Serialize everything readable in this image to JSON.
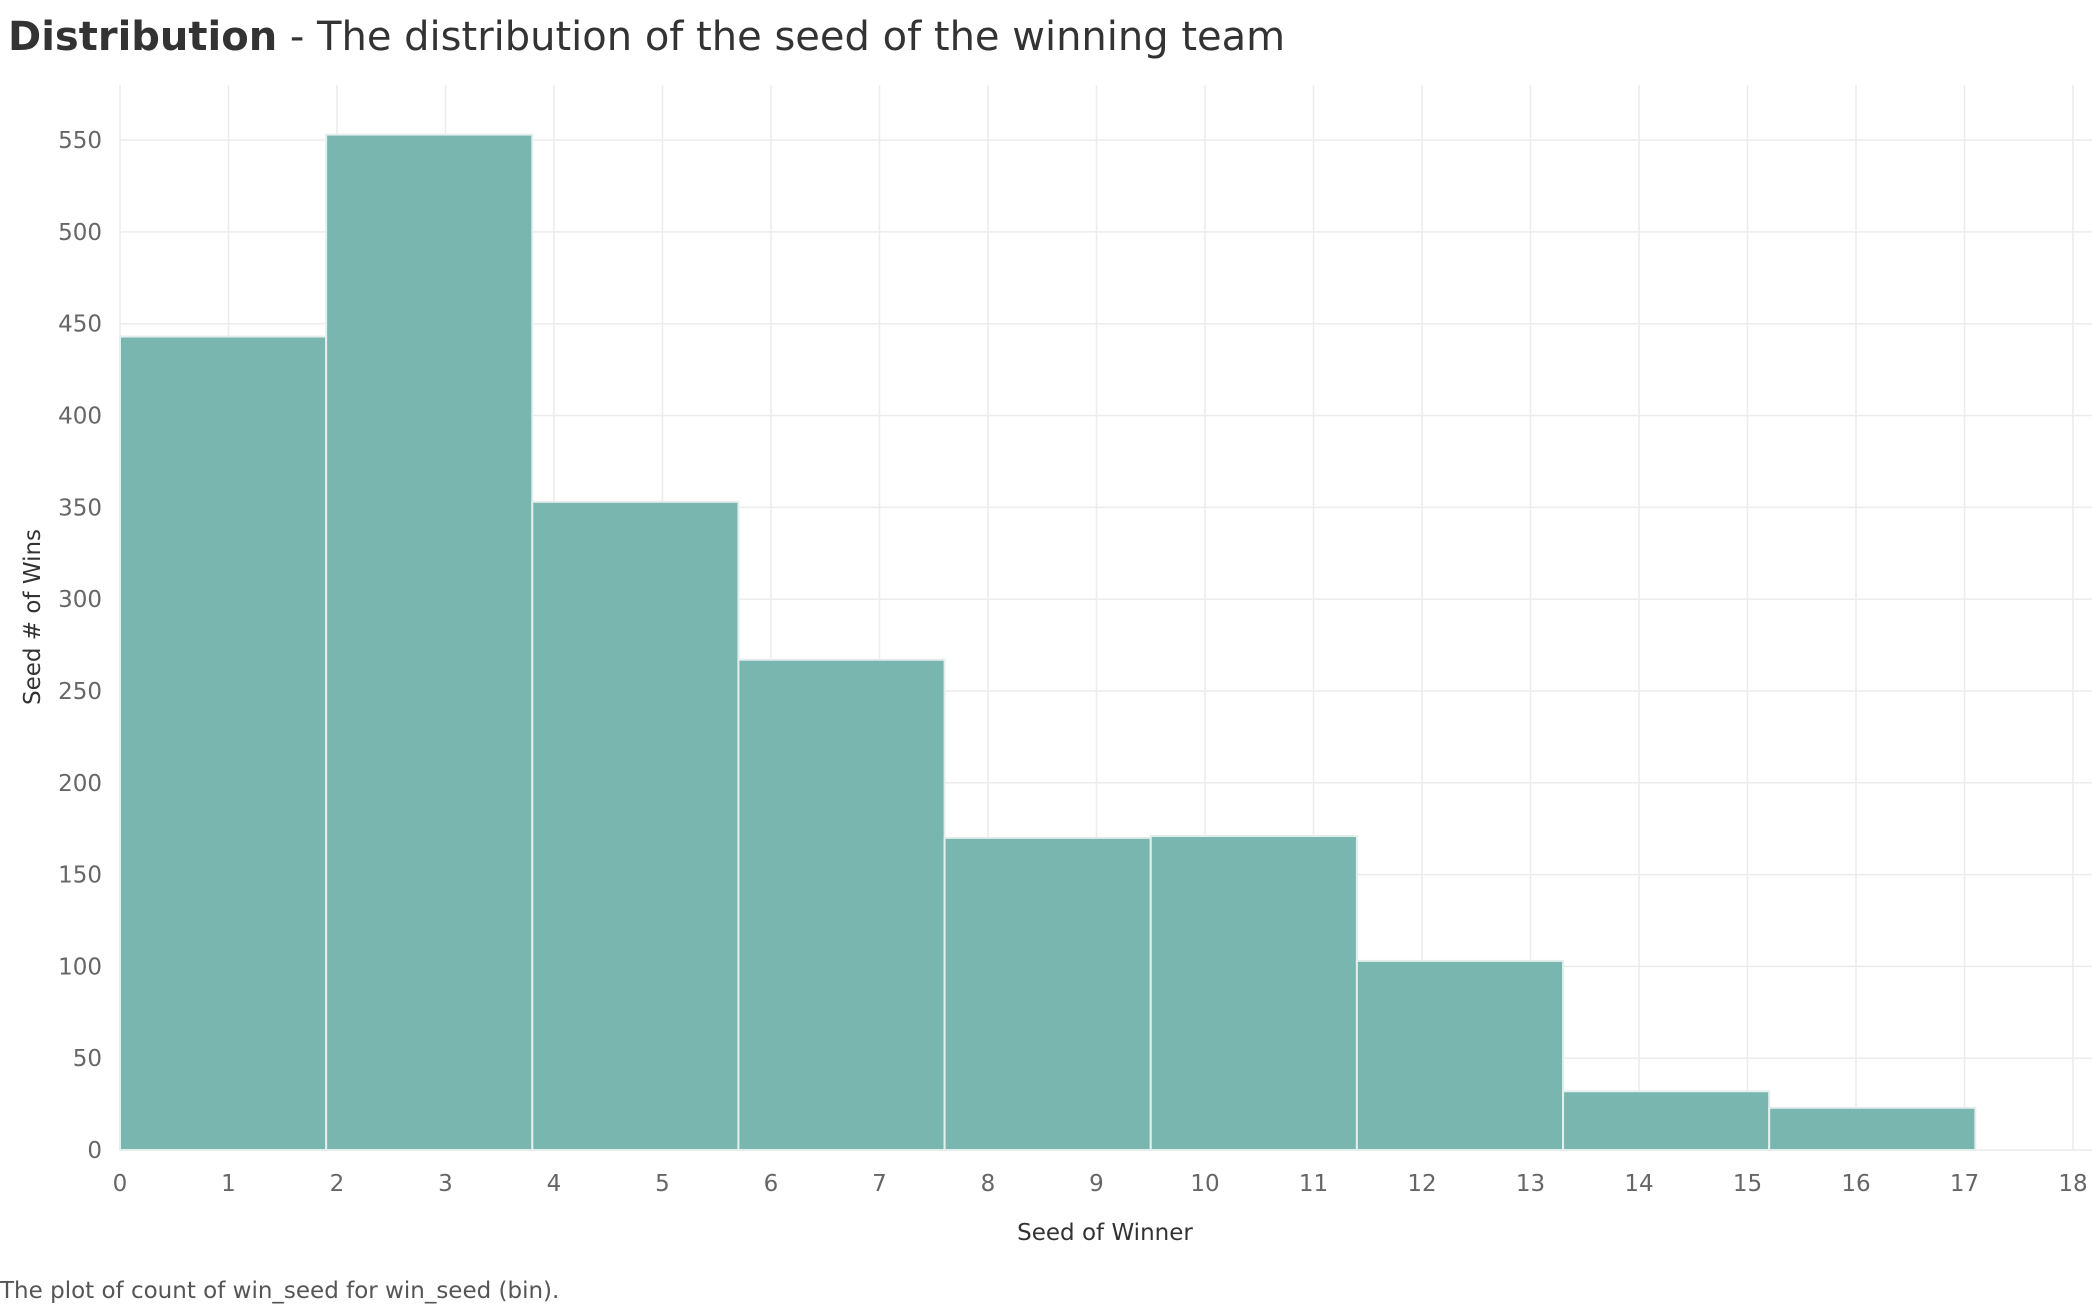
{
  "title": {
    "bold": "Distribution",
    "rest": " - The distribution of the seed of the winning team"
  },
  "caption": "The plot of count of win_seed for win_seed (bin).",
  "chart_data": {
    "type": "bar",
    "title": "Distribution - The distribution of the seed of the winning team",
    "xlabel": "Seed of Winner",
    "ylabel": "Seed # of Wins",
    "bins": [
      {
        "start": 0.0,
        "end": 1.9,
        "value": 443
      },
      {
        "start": 1.9,
        "end": 3.8,
        "value": 553
      },
      {
        "start": 3.8,
        "end": 5.7,
        "value": 353
      },
      {
        "start": 5.7,
        "end": 7.6,
        "value": 267
      },
      {
        "start": 7.6,
        "end": 9.5,
        "value": 170
      },
      {
        "start": 9.5,
        "end": 11.4,
        "value": 171
      },
      {
        "start": 11.4,
        "end": 13.3,
        "value": 103
      },
      {
        "start": 13.3,
        "end": 15.2,
        "value": 32
      },
      {
        "start": 15.2,
        "end": 17.1,
        "value": 23
      }
    ],
    "xlim": [
      0,
      18
    ],
    "ylim": [
      0,
      580
    ],
    "xticks": [
      0,
      1,
      2,
      3,
      4,
      5,
      6,
      7,
      8,
      9,
      10,
      11,
      12,
      13,
      14,
      15,
      16,
      17,
      18
    ],
    "yticks": [
      0,
      50,
      100,
      150,
      200,
      250,
      300,
      350,
      400,
      450,
      500,
      550
    ],
    "grid": true,
    "colors": {
      "bar": "#7ab6b0",
      "bar_edge": "#e4eeed",
      "grid": "#ececec",
      "tick_text": "#666666",
      "axis_label": "#333333"
    }
  }
}
